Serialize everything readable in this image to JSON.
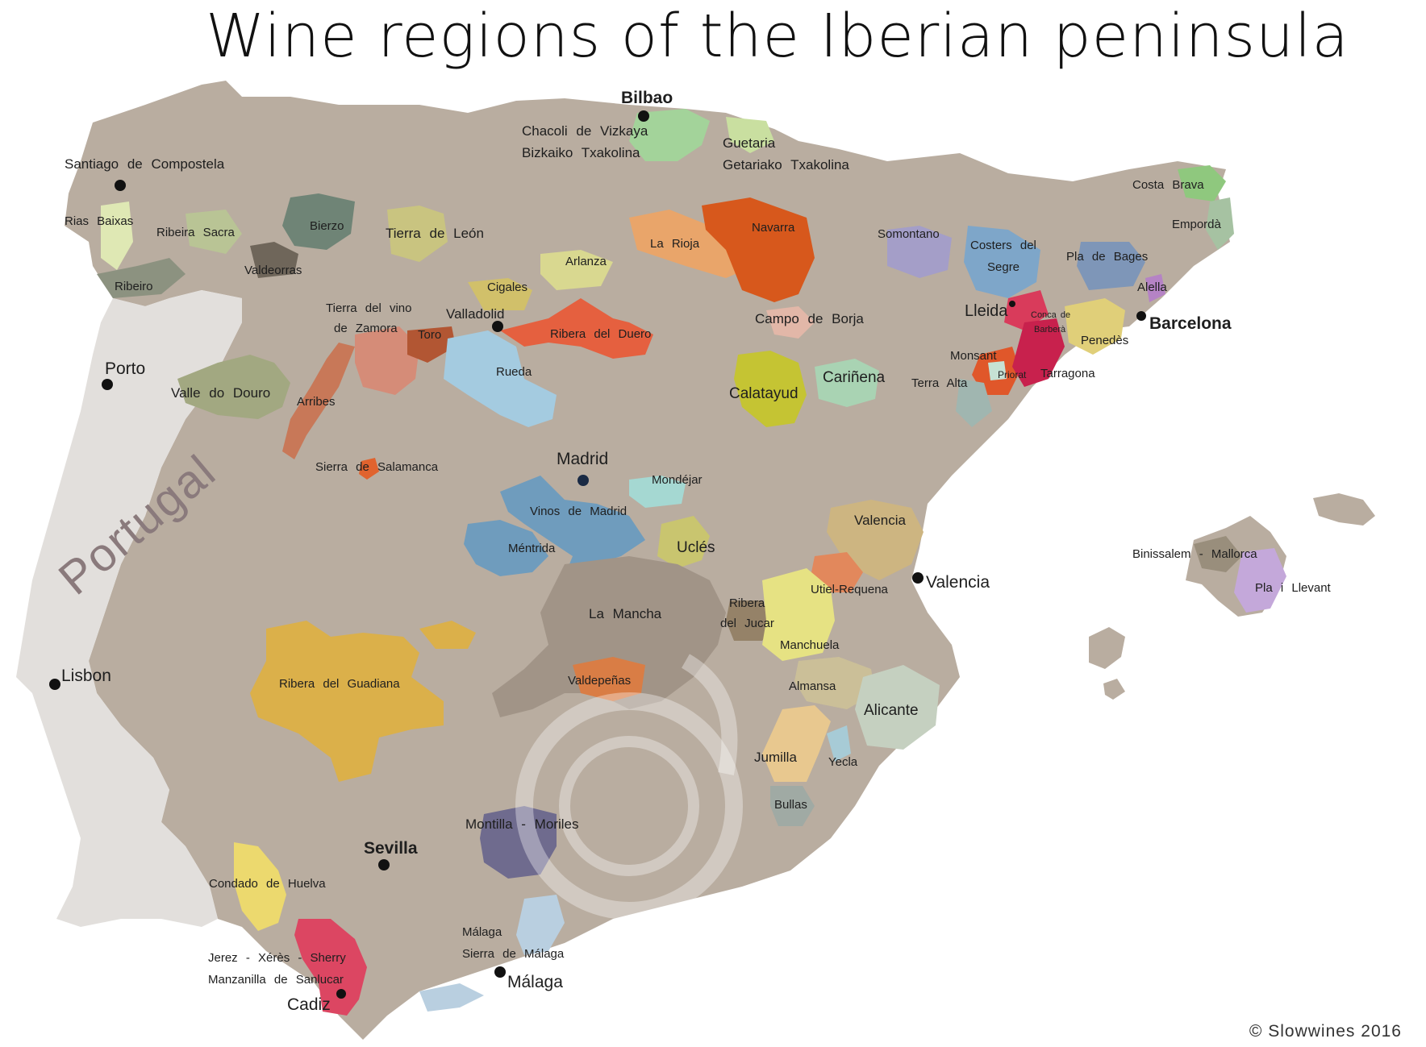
{
  "title": "Wine regions of the Iberian peninsula",
  "country_label": "Portugal",
  "copyright": "© Slowwines 2016",
  "colors": {
    "spain": "#b9ada0",
    "portugal": "#e2dfdc",
    "sea": "#ffffff",
    "city_dot": "#111111"
  },
  "cities": {
    "bilbao": "Bilbao",
    "santiago": "Santiago de Compostela",
    "porto": "Porto",
    "lisbon": "Lisbon",
    "valladolid": "Valladolid",
    "madrid": "Madrid",
    "lleida": "Lleida",
    "barcelona": "Barcelona",
    "valencia": "Valencia",
    "sevilla": "Sevilla",
    "malaga": "Málaga",
    "cadiz": "Cadiz"
  },
  "regions": {
    "chacoli_1": "Chacoli de Vizkaya",
    "chacoli_2": "Bizkaiko Txakolina",
    "guetaria_1": "Guetaria",
    "guetaria_2": "Getariako Txakolina",
    "rias_baixas": "Rias Baixas",
    "ribeira_sacra": "Ribeira Sacra",
    "bierzo": "Bierzo",
    "valdeorras": "Valdeorras",
    "ribeiro": "Ribeiro",
    "tierra_leon": "Tierra de León",
    "arlanza": "Arlanza",
    "cigales": "Cigales",
    "la_rioja": "La Rioja",
    "navarra": "Navarra",
    "somontano": "Somontano",
    "costers_1": "Costers del",
    "costers_2": "Segre",
    "costa_brava": "Costa Brava",
    "emporda": "Empordà",
    "pla_de_bages": "Pla de Bages",
    "alella": "Alella",
    "tierra_vino_1": "Tierra del vino",
    "tierra_vino_2": "de Zamora",
    "toro": "Toro",
    "ribera_duero": "Ribera del Duero",
    "rueda": "Rueda",
    "valle_douro": "Valle do Douro",
    "arribes": "Arribes",
    "campo_borja": "Campo de Borja",
    "conca_1": "Conca de",
    "conca_2": "Barberà",
    "penedes": "Penedès",
    "monsant": "Monsant",
    "priorat": "Priorat",
    "tarragona": "Tarragona",
    "terra_alta": "Terra Alta",
    "carinena": "Cariñena",
    "calatayud": "Calatayud",
    "sierra_salamanca": "Sierra de Salamanca",
    "mondejar": "Mondéjar",
    "vinos_madrid": "Vinos de Madrid",
    "mentrida": "Méntrida",
    "ucles": "Uclés",
    "valencia_do": "Valencia",
    "utiel": "Utiel-Requena",
    "binissalem": "Binissalem - Mallorca",
    "pla_llevant": "Pla i Llevant",
    "la_mancha": "La Mancha",
    "ribera_jucar_1": "Ribera",
    "ribera_jucar_2": "del Jucar",
    "manchuela": "Manchuela",
    "almansa": "Almansa",
    "alicante": "Alicante",
    "ribera_guadiana": "Ribera del Guadiana",
    "valdepenas": "Valdepeñas",
    "jumilla": "Jumilla",
    "yecla": "Yecla",
    "bullas": "Bullas",
    "montilla": "Montilla - Moriles",
    "condado": "Condado de Huelva",
    "malaga_do_1": "Málaga",
    "malaga_do_2": "Sierra de Málaga",
    "jerez_1": "Jerez - Xérès - Sherry",
    "jerez_2": "Manzanilla de Sanlucar"
  }
}
